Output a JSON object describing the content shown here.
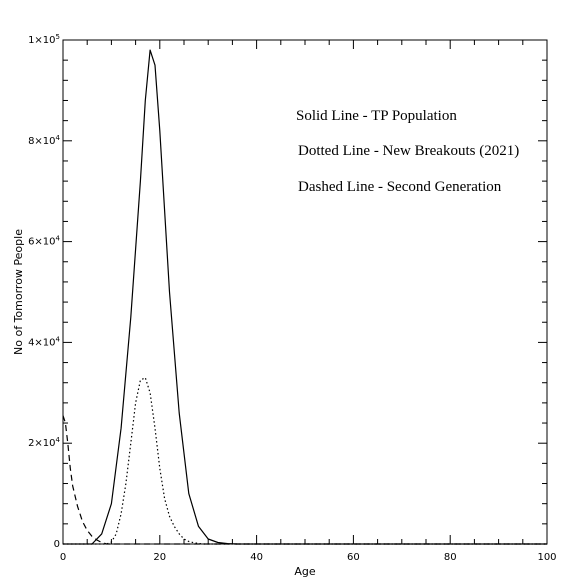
{
  "chart_data": {
    "type": "line",
    "title": "",
    "xlabel": "Age",
    "ylabel": "No of Tomorrow People",
    "xlim": [
      0,
      100
    ],
    "ylim": [
      0,
      100000
    ],
    "x_ticks": [
      0,
      20,
      40,
      60,
      80,
      100
    ],
    "x_tick_labels": [
      "0",
      "20",
      "40",
      "60",
      "80",
      "100"
    ],
    "y_ticks": [
      0,
      20000,
      40000,
      60000,
      80000,
      100000
    ],
    "y_tick_labels": [
      {
        "base": "0",
        "exp": ""
      },
      {
        "base": "2×10",
        "exp": "4"
      },
      {
        "base": "4×10",
        "exp": "4"
      },
      {
        "base": "6×10",
        "exp": "4"
      },
      {
        "base": "8×10",
        "exp": "4"
      },
      {
        "base": "1×10",
        "exp": "5"
      }
    ],
    "grid": false,
    "series": [
      {
        "name": "TP Population",
        "style": "solid",
        "x": [
          0,
          6,
          8,
          10,
          12,
          14,
          16,
          17,
          18,
          19,
          20,
          22,
          24,
          26,
          28,
          30,
          32,
          34,
          36,
          40,
          100
        ],
        "y": [
          0,
          0,
          2000,
          8000,
          23000,
          45000,
          72000,
          88000,
          98000,
          95000,
          82000,
          50000,
          26000,
          10000,
          3500,
          1000,
          300,
          80,
          0,
          0,
          0
        ]
      },
      {
        "name": "New Breakouts (2021)",
        "style": "dotted",
        "x": [
          0,
          9,
          10,
          11,
          12,
          13,
          14,
          15,
          16,
          17,
          18,
          19,
          20,
          21,
          22,
          23,
          24,
          25,
          26,
          27,
          28,
          29,
          30,
          100
        ],
        "y": [
          0,
          0,
          400,
          2000,
          6000,
          12000,
          20000,
          28000,
          32500,
          33000,
          30000,
          23000,
          15000,
          9000,
          5500,
          3500,
          2000,
          1000,
          500,
          250,
          100,
          0,
          0,
          0
        ]
      },
      {
        "name": "Second Generation",
        "style": "dashed",
        "x": [
          0,
          0.5,
          1,
          1.5,
          2,
          3,
          4,
          5,
          6,
          7,
          8,
          9,
          10,
          100
        ],
        "y": [
          25500,
          24000,
          20000,
          15000,
          11500,
          7500,
          4500,
          2700,
          1500,
          800,
          300,
          0,
          0,
          0
        ]
      }
    ],
    "annotations": [
      "Solid Line - TP Population",
      "Dotted Line - New Breakouts (2021)",
      "Dashed Line - Second Generation"
    ],
    "colors": {
      "line": "#000000",
      "background": "#ffffff"
    }
  }
}
